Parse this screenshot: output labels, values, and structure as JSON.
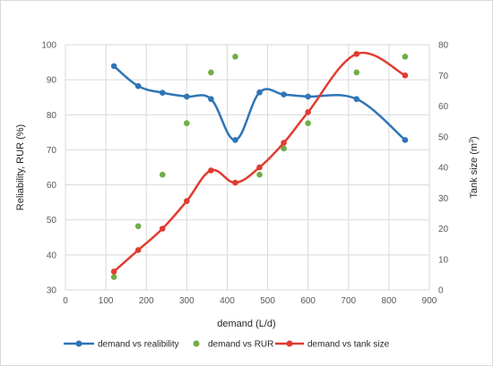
{
  "chart_data": {
    "type": "line",
    "title": "",
    "xlabel": "demand (L/d)",
    "ylabel_left": "Reliability, RUR (%)",
    "ylabel_right_base": "Tank size (m",
    "ylabel_right_sup": "3",
    "ylabel_right_end": ")",
    "xlim": [
      0,
      900
    ],
    "xticks": [
      0,
      100,
      200,
      300,
      400,
      500,
      600,
      700,
      800,
      900
    ],
    "ylim_left": [
      30,
      100
    ],
    "yticks_left": [
      30,
      40,
      50,
      60,
      70,
      80,
      90,
      100
    ],
    "ylim_right": [
      0,
      80
    ],
    "yticks_right": [
      0,
      10,
      20,
      30,
      40,
      50,
      60,
      70,
      80
    ],
    "grid": true,
    "legend_position": "bottom",
    "series": [
      {
        "name": "demand vs realibility",
        "axis": "left",
        "style": "line-markers",
        "color": "#2e75b6",
        "x": [
          120,
          180,
          240,
          300,
          360,
          420,
          480,
          540,
          600,
          720,
          840
        ],
        "y": [
          93.9,
          88.2,
          86.3,
          85.2,
          84.5,
          72.8,
          86.4,
          85.8,
          85.2,
          84.5,
          72.8
        ]
      },
      {
        "name": "demand vs RUR",
        "axis": "left",
        "style": "markers",
        "color": "#70ad47",
        "x": [
          120,
          180,
          240,
          300,
          360,
          420,
          480,
          540,
          600,
          720,
          840
        ],
        "y": [
          33.7,
          48.2,
          62.9,
          77.6,
          92.1,
          96.6,
          62.9,
          70.4,
          77.6,
          92.1,
          96.6
        ]
      },
      {
        "name": "demand vs tank size",
        "axis": "right",
        "style": "line-markers",
        "color": "#e03c31",
        "x": [
          120,
          180,
          240,
          300,
          360,
          420,
          480,
          540,
          600,
          720,
          840
        ],
        "y": [
          6,
          13,
          20,
          29,
          39,
          35,
          40,
          48,
          58,
          77,
          70
        ]
      }
    ]
  }
}
